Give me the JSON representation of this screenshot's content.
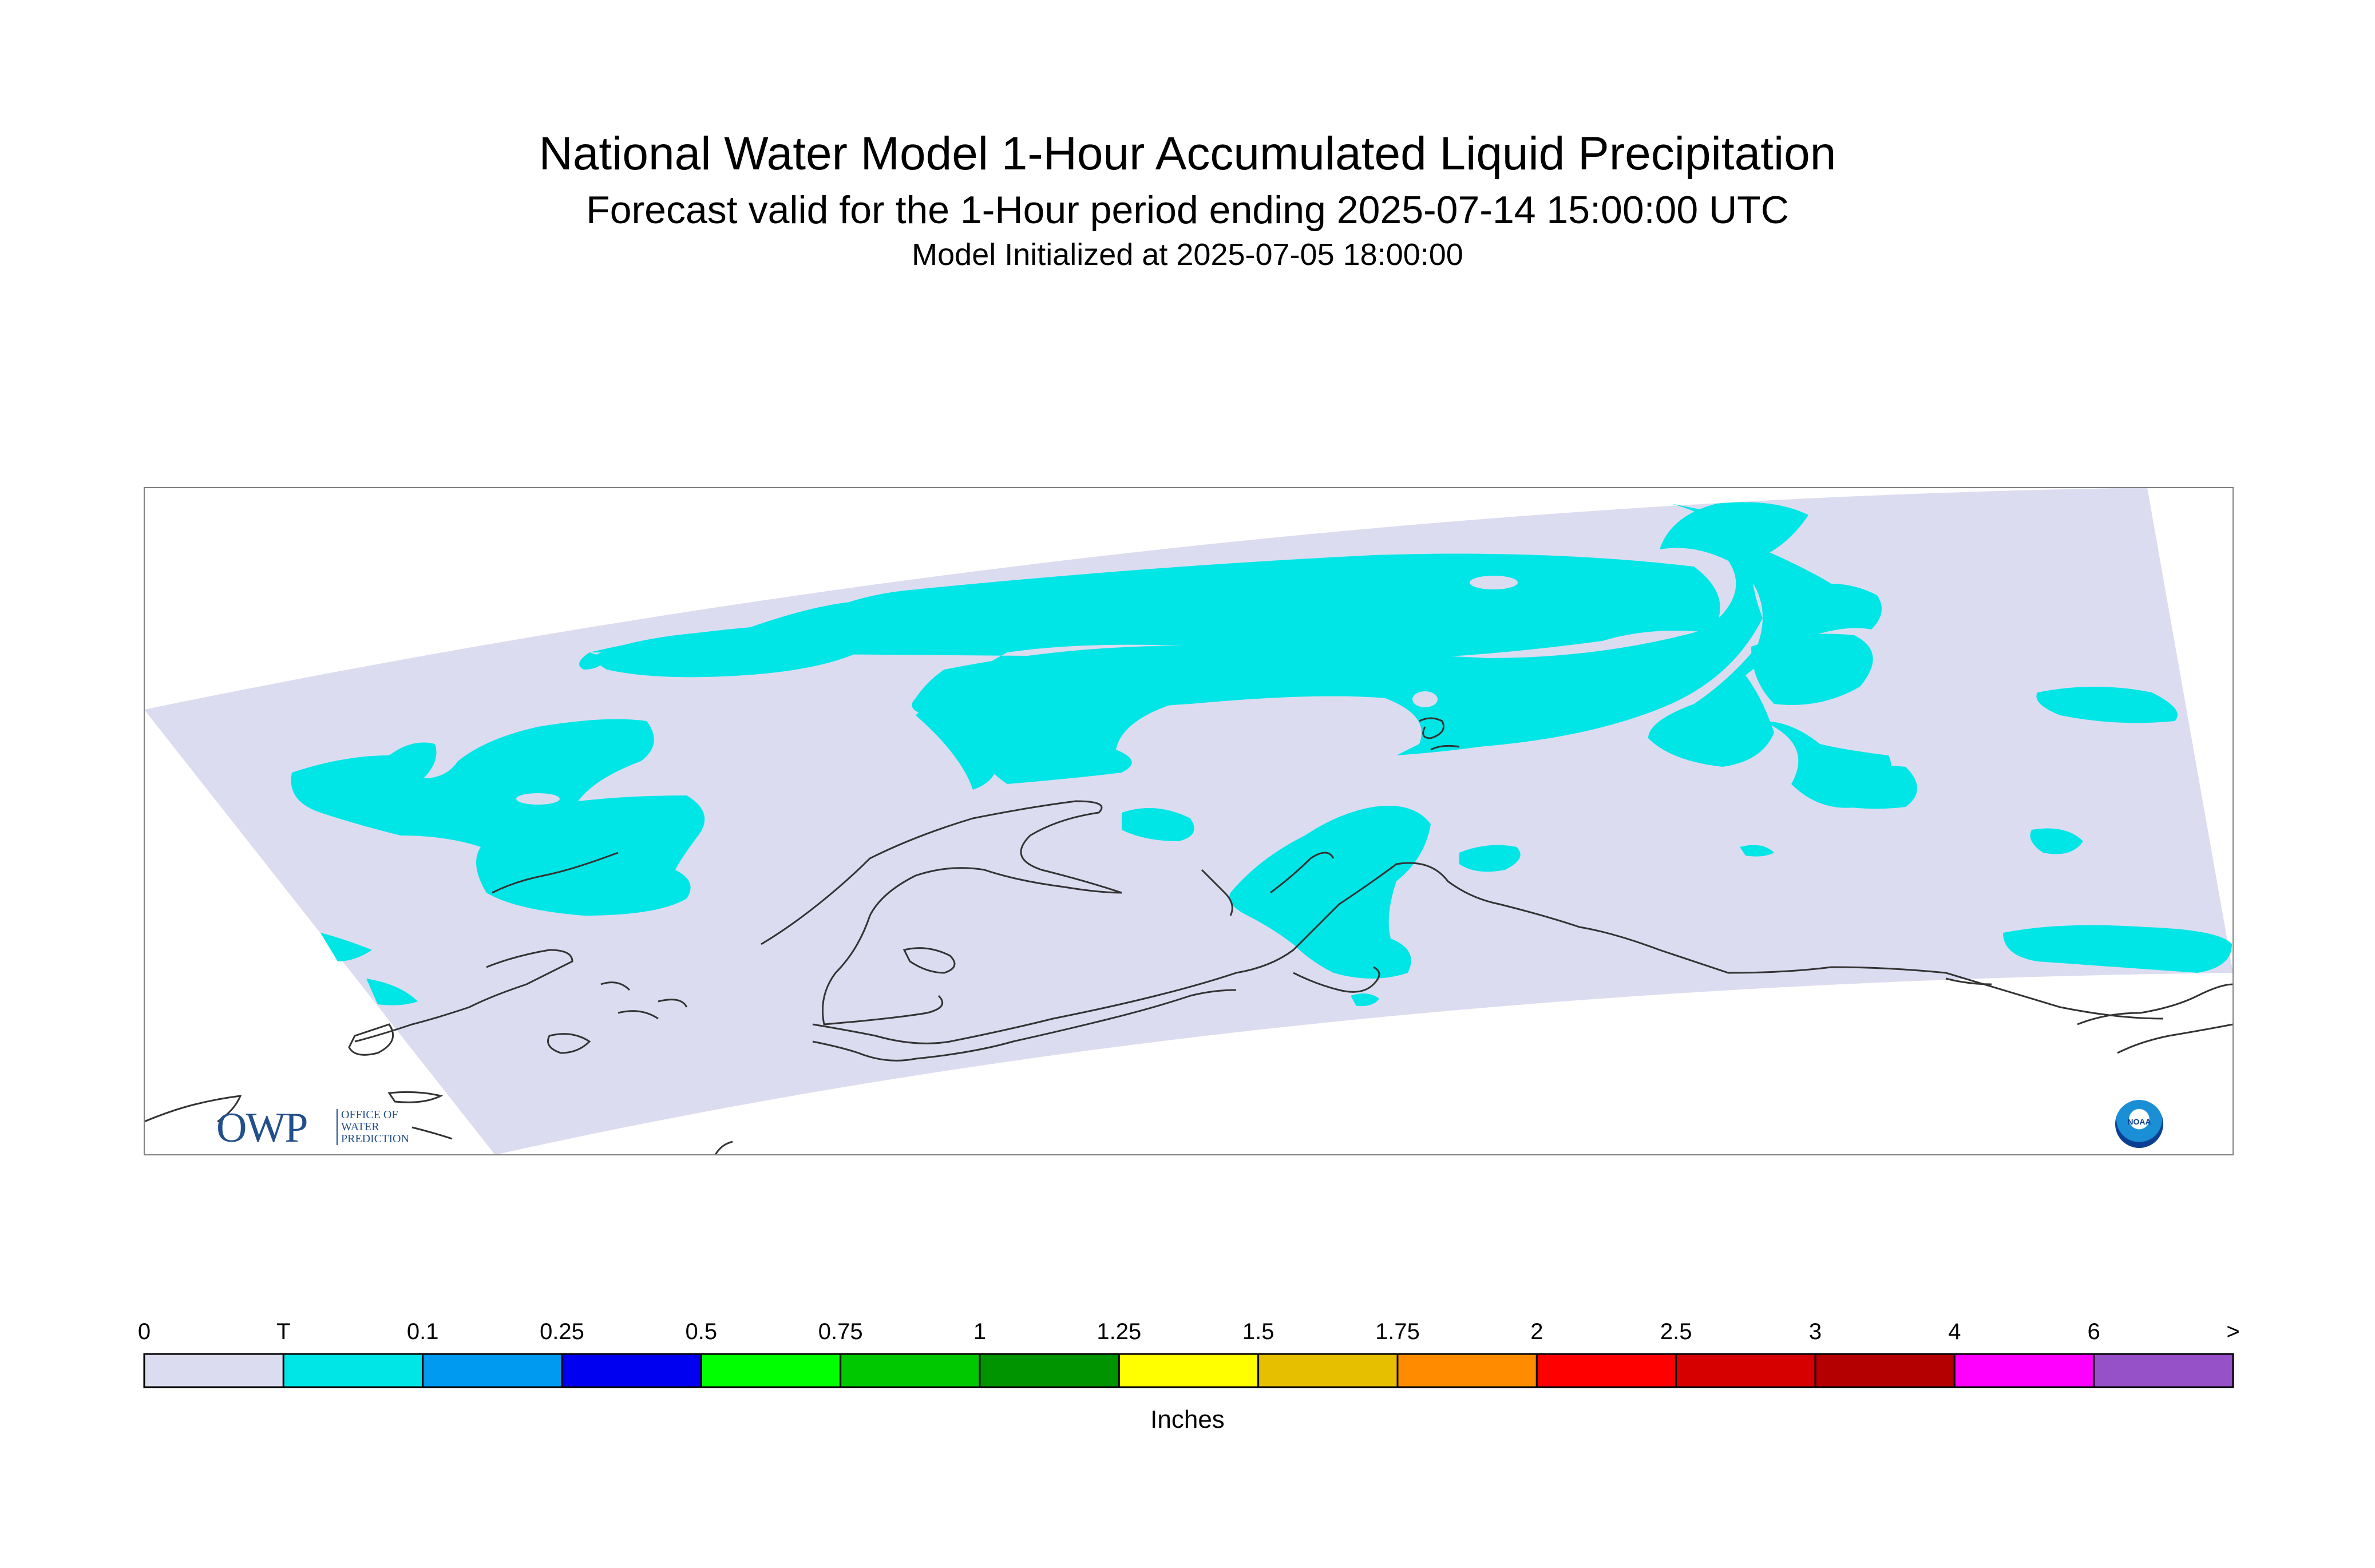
{
  "title": "National Water Model 1-Hour Accumulated Liquid Precipitation",
  "subtitle": "Forecast valid for the 1-Hour period ending 2025-07-14 15:00:00 UTC",
  "init_line": "Model Initialized at 2025-07-05 18:00:00",
  "logos": {
    "owp_mark": "OWP",
    "owp_text": [
      "OFFICE OF",
      "WATER",
      "PREDICTION"
    ],
    "noaa_text": "NOAA"
  },
  "colorbar": {
    "units": "Inches",
    "labels": [
      "0",
      "T",
      "0.1",
      "0.25",
      "0.5",
      "0.75",
      "1",
      "1.25",
      "1.5",
      "1.75",
      "2",
      "2.5",
      "3",
      "4",
      "6",
      ">"
    ],
    "colors": [
      "#dcdcf0",
      "#00e6e6",
      "#009af0",
      "#0000f0",
      "#00ff00",
      "#00c800",
      "#009400",
      "#ffff00",
      "#e6c000",
      "#ff8c00",
      "#ff0000",
      "#d70000",
      "#b40000",
      "#ff00ff",
      "#9650c8"
    ]
  },
  "map": {
    "domain_color": "#dcdcf0",
    "precip_color": "#00e6e6",
    "coast_color": "#333333"
  }
}
